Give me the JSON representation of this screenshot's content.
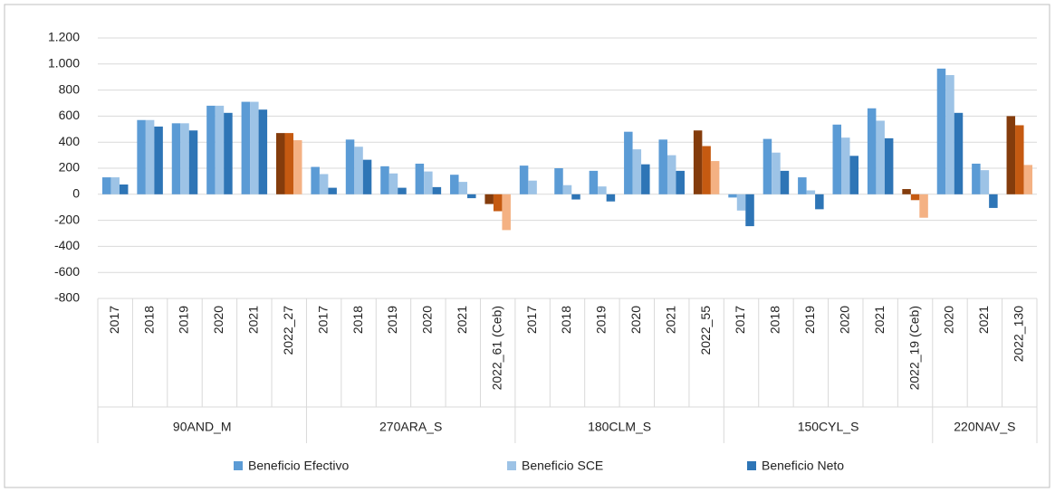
{
  "chart_data": {
    "type": "bar",
    "groups": [
      {
        "label": "90AND_M",
        "categories": [
          "2017",
          "2018",
          "2019",
          "2020",
          "2021",
          "2022_27"
        ]
      },
      {
        "label": "270ARA_S",
        "categories": [
          "2017",
          "2018",
          "2019",
          "2020",
          "2021",
          "2022_61 (Ceb)"
        ]
      },
      {
        "label": "180CLM_S",
        "categories": [
          "2017",
          "2018",
          "2019",
          "2020",
          "2021",
          "2022_55"
        ]
      },
      {
        "label": "150CYL_S",
        "categories": [
          "2017",
          "2018",
          "2019",
          "2020",
          "2021",
          "2022_19 (Ceb)"
        ]
      },
      {
        "label": "220NAV_S",
        "categories": [
          "2020",
          "2021",
          "2022_130"
        ]
      }
    ],
    "series": [
      {
        "name": "Beneficio Efectivo",
        "color": "#5b9bd5",
        "values": [
          130,
          570,
          545,
          680,
          710,
          470,
          210,
          420,
          215,
          235,
          150,
          -75,
          220,
          200,
          180,
          480,
          420,
          490,
          -25,
          425,
          130,
          535,
          660,
          40,
          965,
          235,
          600
        ],
        "colors": [
          "#5b9bd5",
          "#5b9bd5",
          "#5b9bd5",
          "#5b9bd5",
          "#5b9bd5",
          "#843c0c",
          "#5b9bd5",
          "#5b9bd5",
          "#5b9bd5",
          "#5b9bd5",
          "#5b9bd5",
          "#843c0c",
          "#5b9bd5",
          "#5b9bd5",
          "#5b9bd5",
          "#5b9bd5",
          "#5b9bd5",
          "#843c0c",
          "#5b9bd5",
          "#5b9bd5",
          "#5b9bd5",
          "#5b9bd5",
          "#5b9bd5",
          "#843c0c",
          "#5b9bd5",
          "#5b9bd5",
          "#843c0c"
        ]
      },
      {
        "name": "Beneficio SCE",
        "color": "#9dc3e6",
        "values": [
          130,
          570,
          545,
          680,
          710,
          470,
          155,
          365,
          160,
          175,
          95,
          -130,
          105,
          70,
          60,
          345,
          300,
          370,
          -125,
          320,
          30,
          435,
          565,
          -45,
          915,
          185,
          530
        ],
        "colors": [
          "#9dc3e6",
          "#9dc3e6",
          "#9dc3e6",
          "#9dc3e6",
          "#9dc3e6",
          "#c55a11",
          "#9dc3e6",
          "#9dc3e6",
          "#9dc3e6",
          "#9dc3e6",
          "#9dc3e6",
          "#c55a11",
          "#9dc3e6",
          "#9dc3e6",
          "#9dc3e6",
          "#9dc3e6",
          "#9dc3e6",
          "#c55a11",
          "#9dc3e6",
          "#9dc3e6",
          "#9dc3e6",
          "#9dc3e6",
          "#9dc3e6",
          "#c55a11",
          "#9dc3e6",
          "#9dc3e6",
          "#c55a11"
        ]
      },
      {
        "name": "Beneficio Neto",
        "color": "#2e75b6",
        "values": [
          75,
          520,
          490,
          625,
          650,
          415,
          50,
          265,
          50,
          55,
          -30,
          -275,
          0,
          -40,
          -55,
          230,
          180,
          255,
          -245,
          180,
          -115,
          295,
          430,
          -180,
          625,
          -105,
          225
        ],
        "colors": [
          "#2e75b6",
          "#2e75b6",
          "#2e75b6",
          "#2e75b6",
          "#2e75b6",
          "#f4b183",
          "#2e75b6",
          "#2e75b6",
          "#2e75b6",
          "#2e75b6",
          "#2e75b6",
          "#f4b183",
          "#2e75b6",
          "#2e75b6",
          "#2e75b6",
          "#2e75b6",
          "#2e75b6",
          "#f4b183",
          "#2e75b6",
          "#2e75b6",
          "#2e75b6",
          "#2e75b6",
          "#2e75b6",
          "#f4b183",
          "#2e75b6",
          "#2e75b6",
          "#f4b183"
        ]
      }
    ],
    "ylim": [
      -800,
      1200
    ],
    "yticks": [
      -800,
      -600,
      -400,
      -200,
      0,
      200,
      400,
      600,
      800,
      {
        "value": 1000,
        "label": "1.000"
      },
      {
        "value": 1200,
        "label": "1.200"
      }
    ],
    "grid": true,
    "legend": "bottom"
  }
}
